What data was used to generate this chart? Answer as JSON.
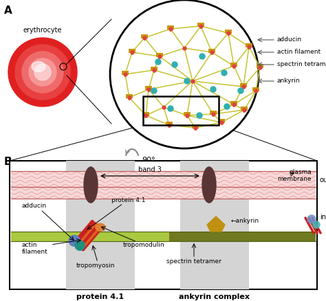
{
  "fig_width": 4.74,
  "fig_height": 4.38,
  "dpi": 100,
  "bg_color": "#ffffff",
  "panel_A_label": "A",
  "panel_B_label": "B",
  "erythrocyte_label": "erythrocyte",
  "rotation_label": "90°",
  "legend_labels": [
    "adducin",
    "actin filament",
    "spectrin tetramer",
    "ankyrin"
  ],
  "colors": {
    "spectrin_line": "#c8c840",
    "actin_node": "#e04040",
    "adducin_gold": "#c89000",
    "ankyrin_cyan": "#20a0c0",
    "band3_brown": "#5a3535",
    "mem_fill": "#f8d8d8",
    "mem_line": "#e09090",
    "green_light": "#aac840",
    "green_dark": "#707820",
    "actin_red": "#cc2020",
    "tropomyosin_col": "#e06820",
    "tropomodulin_col": "#e08030",
    "adducin_blue": "#6080c0",
    "adducin_teal": "#209080",
    "ankyrin_gold": "#c09010",
    "gray_region": "#d4d4d4",
    "erythrocyte_dark": "#d83030",
    "erythrocyte_mid": "#e86060",
    "erythrocyte_light": "#f8a0a0",
    "erythrocyte_highlight": "#fce8e8"
  }
}
